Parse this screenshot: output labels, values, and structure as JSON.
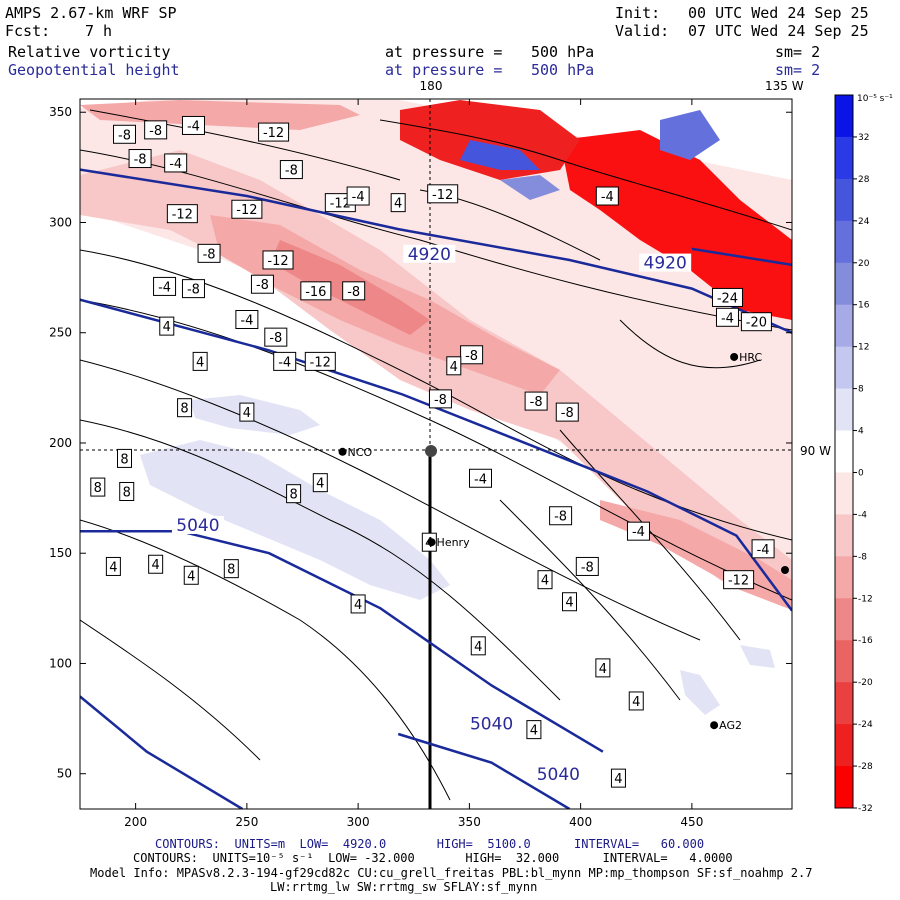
{
  "header": {
    "model": "AMPS 2.67-km WRF SP",
    "fcst_label": "Fcst:",
    "fcst_value": "7 h",
    "init_label": "Init:",
    "init_value": "00 UTC Wed 24 Sep 25",
    "valid_label": "Valid:",
    "valid_value": "07 UTC Wed 24 Sep 25",
    "field1": "Relative vorticity",
    "field1_level_label": "at pressure =",
    "field1_level": "500 hPa",
    "field1_sm": "sm= 2",
    "field2": "Geopotential height",
    "field2_level_label": "at pressure =",
    "field2_level": "500 hPa",
    "field2_sm": "sm= 2"
  },
  "map_labels": {
    "lon_180": "180",
    "lon_135w": "135 W",
    "lat_90w": "90 W"
  },
  "stations": [
    {
      "name": "NCO",
      "x": 293,
      "y": 196
    },
    {
      "name": "Henry",
      "x": 333,
      "y": 155
    },
    {
      "name": "HRC",
      "x": 469,
      "y": 239
    },
    {
      "name": "AG2",
      "x": 460,
      "y": 72
    }
  ],
  "colorbar": {
    "unit": "10⁻⁵ s⁻¹",
    "ticks": [
      "32",
      "28",
      "24",
      "20",
      "16",
      "12",
      "8",
      "4",
      "0",
      "-4",
      "-8",
      "-12",
      "-16",
      "-20",
      "-24",
      "-28",
      "-32"
    ],
    "colors": [
      "#0a14e6",
      "#2a3ae6",
      "#4656dc",
      "#6470dc",
      "#848cdc",
      "#a6aae6",
      "#c4c8f0",
      "#e2e4f6",
      "#ffffff",
      "#fde6e6",
      "#f8c8c8",
      "#f4a8a8",
      "#ee8888",
      "#ea6464",
      "#ea4040",
      "#ee2020",
      "#fa0000"
    ]
  },
  "footer": {
    "line1": "CONTOURS:  UNITS=m  LOW=  4920.0       HIGH=  5100.0      INTERVAL=   60.000",
    "line2": "CONTOURS:  UNITS=10⁻⁵ s⁻¹  LOW= -32.000       HIGH=  32.000      INTERVAL=   4.0000",
    "line3": "Model Info: MPASv8.2.3-194-gf29cd82c CU:cu_grell_freitas PBL:bl_mynn MP:mp_thompson SF:sf_noahmp 2.7",
    "line4": "LW:rrtmg_lw SW:rrtmg_sw SFLAY:sf_mynn"
  },
  "chart_data": {
    "type": "contour",
    "title": "Relative vorticity / Geopotential height at 500 hPa",
    "x_ticks": [
      200,
      250,
      300,
      350,
      400,
      450
    ],
    "y_ticks": [
      50,
      100,
      150,
      200,
      250,
      300,
      350
    ],
    "xlim": [
      175,
      495
    ],
    "ylim": [
      34,
      356
    ],
    "height_contours": [
      {
        "label": "4920",
        "points": [
          [
            175,
            324
          ],
          [
            250,
            312
          ],
          [
            318,
            297
          ],
          [
            395,
            283
          ],
          [
            450,
            270
          ],
          [
            495,
            250
          ]
        ]
      },
      {
        "label": "4920",
        "points": [
          [
            450,
            288
          ],
          [
            500,
            280
          ]
        ]
      },
      {
        "label": "5040",
        "points": [
          [
            175,
            265
          ],
          [
            260,
            242
          ],
          [
            320,
            222
          ],
          [
            385,
            196
          ],
          [
            430,
            178
          ],
          [
            470,
            158
          ],
          [
            495,
            124
          ]
        ]
      },
      {
        "label": "5040",
        "points": [
          [
            175,
            160
          ],
          [
            220,
            160
          ],
          [
            260,
            150
          ],
          [
            310,
            125
          ],
          [
            360,
            90
          ],
          [
            410,
            60
          ]
        ]
      },
      {
        "label": "5040",
        "points": [
          [
            175,
            85
          ],
          [
            205,
            60
          ],
          [
            248,
            34
          ]
        ]
      },
      {
        "label": "5040",
        "points": [
          [
            318,
            68
          ],
          [
            360,
            55
          ],
          [
            395,
            34
          ]
        ]
      }
    ],
    "vorticity_labels": [
      {
        "v": "-8",
        "x": 195,
        "y": 340
      },
      {
        "v": "-8",
        "x": 209,
        "y": 342
      },
      {
        "v": "-4",
        "x": 226,
        "y": 344
      },
      {
        "v": "-12",
        "x": 262,
        "y": 341
      },
      {
        "v": "-8",
        "x": 202,
        "y": 329
      },
      {
        "v": "-4",
        "x": 218,
        "y": 327
      },
      {
        "v": "-8",
        "x": 270,
        "y": 324
      },
      {
        "v": "-12",
        "x": 221,
        "y": 304
      },
      {
        "v": "-12",
        "x": 250,
        "y": 306
      },
      {
        "v": "-12",
        "x": 292,
        "y": 309
      },
      {
        "v": "-8",
        "x": 233,
        "y": 286
      },
      {
        "v": "-12",
        "x": 264,
        "y": 283
      },
      {
        "v": "-4",
        "x": 213,
        "y": 271
      },
      {
        "v": "-8",
        "x": 226,
        "y": 270
      },
      {
        "v": "-8",
        "x": 257,
        "y": 272
      },
      {
        "v": "-16",
        "x": 281,
        "y": 269
      },
      {
        "v": "-8",
        "x": 298,
        "y": 269
      },
      {
        "v": "-4",
        "x": 250,
        "y": 256
      },
      {
        "v": "-8",
        "x": 263,
        "y": 248
      },
      {
        "v": "-4",
        "x": 267,
        "y": 237
      },
      {
        "v": "-12",
        "x": 283,
        "y": 237
      },
      {
        "v": "-8",
        "x": 351,
        "y": 240
      },
      {
        "v": "-8",
        "x": 380,
        "y": 219
      },
      {
        "v": "-8",
        "x": 394,
        "y": 214
      },
      {
        "v": "-8",
        "x": 337,
        "y": 220
      },
      {
        "v": "4",
        "x": 318,
        "y": 309
      },
      {
        "v": "-4",
        "x": 300,
        "y": 312
      },
      {
        "v": "-12",
        "x": 338,
        "y": 313
      },
      {
        "v": "-4",
        "x": 412,
        "y": 312
      },
      {
        "v": "-24",
        "x": 466,
        "y": 266
      },
      {
        "v": "-4",
        "x": 466,
        "y": 257
      },
      {
        "v": "-20",
        "x": 479,
        "y": 255
      },
      {
        "v": "4",
        "x": 214,
        "y": 253
      },
      {
        "v": "4",
        "x": 229,
        "y": 237
      },
      {
        "v": "4",
        "x": 250,
        "y": 214
      },
      {
        "v": "4",
        "x": 343,
        "y": 235
      },
      {
        "v": "8",
        "x": 222,
        "y": 216
      },
      {
        "v": "8",
        "x": 195,
        "y": 193
      },
      {
        "v": "8",
        "x": 183,
        "y": 180
      },
      {
        "v": "8",
        "x": 196,
        "y": 178
      },
      {
        "v": "4",
        "x": 283,
        "y": 182
      },
      {
        "v": "8",
        "x": 271,
        "y": 177
      },
      {
        "v": "-4",
        "x": 355,
        "y": 184
      },
      {
        "v": "-8",
        "x": 391,
        "y": 167
      },
      {
        "v": "-4",
        "x": 426,
        "y": 160
      },
      {
        "v": "-4",
        "x": 482,
        "y": 152
      },
      {
        "v": "-8",
        "x": 403,
        "y": 144
      },
      {
        "v": "4",
        "x": 384,
        "y": 138
      },
      {
        "v": "-12",
        "x": 471,
        "y": 138
      },
      {
        "v": "4",
        "x": 225,
        "y": 140
      },
      {
        "v": "4",
        "x": 209,
        "y": 145
      },
      {
        "v": "8",
        "x": 243,
        "y": 143
      },
      {
        "v": "4",
        "x": 190,
        "y": 144
      },
      {
        "v": "4",
        "x": 300,
        "y": 127
      },
      {
        "v": "4",
        "x": 332,
        "y": 155
      },
      {
        "v": "4",
        "x": 395,
        "y": 128
      },
      {
        "v": "4",
        "x": 354,
        "y": 108
      },
      {
        "v": "4",
        "x": 410,
        "y": 98
      },
      {
        "v": "4",
        "x": 425,
        "y": 83
      },
      {
        "v": "4",
        "x": 417,
        "y": 48
      },
      {
        "v": "4",
        "x": 379,
        "y": 70
      }
    ]
  }
}
